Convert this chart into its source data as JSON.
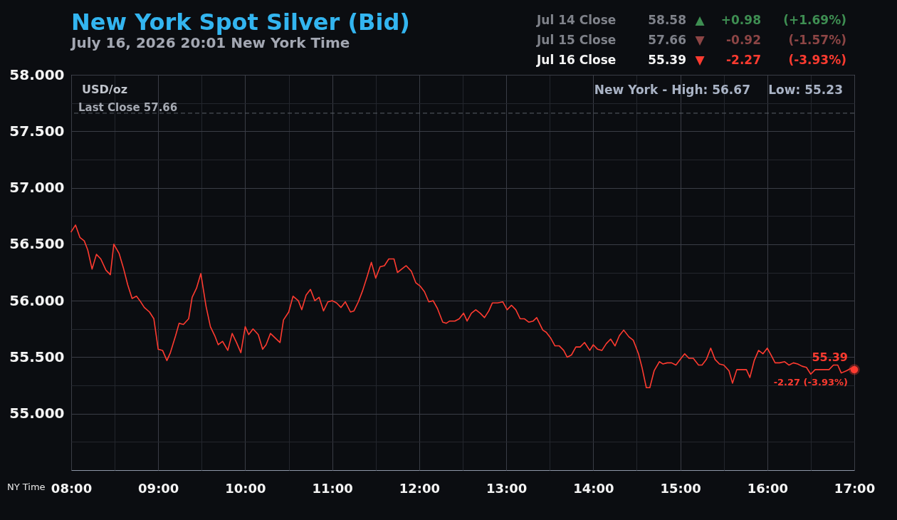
{
  "chart_data": {
    "type": "line",
    "title": "New York Spot Silver (Bid)",
    "subtitle": "July 16, 2026 20:01 New York Time",
    "xlabel": "NY Time",
    "ylabel": "USD/oz",
    "series": [
      {
        "color": "#ff3b30",
        "x": [
          8.0,
          8.05,
          8.1,
          8.15,
          8.19,
          8.24,
          8.29,
          8.34,
          8.4,
          8.45,
          8.49,
          8.55,
          8.6,
          8.65,
          8.7,
          8.75,
          8.79,
          8.84,
          8.9,
          8.95,
          9.0,
          9.05,
          9.1,
          9.14,
          9.2,
          9.24,
          9.29,
          9.35,
          9.39,
          9.44,
          9.49,
          9.55,
          9.6,
          9.65,
          9.69,
          9.74,
          9.8,
          9.85,
          9.9,
          9.95,
          10.0,
          10.04,
          10.09,
          10.15,
          10.2,
          10.24,
          10.29,
          10.4,
          10.44,
          10.5,
          10.55,
          10.61,
          10.65,
          10.7,
          10.75,
          10.8,
          10.85,
          10.9,
          10.95,
          11.0,
          11.05,
          11.1,
          11.15,
          11.21,
          11.25,
          11.3,
          11.35,
          11.4,
          11.45,
          11.5,
          11.55,
          11.6,
          11.65,
          11.71,
          11.75,
          11.8,
          11.85,
          11.91,
          11.96,
          12.01,
          12.06,
          12.11,
          12.16,
          12.21,
          12.27,
          12.31,
          12.35,
          12.41,
          12.46,
          12.51,
          12.55,
          12.6,
          12.65,
          12.7,
          12.75,
          12.8,
          12.84,
          12.9,
          12.96,
          13.01,
          13.06,
          13.11,
          13.16,
          13.21,
          13.26,
          13.31,
          13.35,
          13.42,
          13.46,
          13.51,
          13.56,
          13.61,
          13.66,
          13.7,
          13.75,
          13.8,
          13.85,
          13.9,
          13.96,
          14.0,
          14.05,
          14.1,
          14.15,
          14.2,
          14.25,
          14.3,
          14.35,
          14.41,
          14.46,
          14.52,
          14.56,
          14.61,
          14.65,
          14.7,
          14.76,
          14.8,
          14.85,
          14.9,
          14.95,
          15.0,
          15.05,
          15.1,
          15.15,
          15.21,
          15.25,
          15.3,
          15.35,
          15.4,
          15.45,
          15.5,
          15.56,
          15.6,
          15.65,
          15.71,
          15.76,
          15.8,
          15.85,
          15.9,
          15.95,
          16.0,
          16.05,
          16.09,
          16.14,
          16.2,
          16.25,
          16.3,
          16.35,
          16.4,
          16.45,
          16.5,
          16.55,
          16.61,
          16.66,
          16.71,
          16.76,
          16.81,
          16.85,
          16.91,
          16.96,
          17.0
        ],
        "values": [
          56.61,
          56.67,
          56.56,
          56.53,
          56.45,
          56.28,
          56.41,
          56.37,
          56.27,
          56.23,
          56.5,
          56.42,
          56.29,
          56.14,
          56.02,
          56.04,
          56.0,
          55.94,
          55.9,
          55.84,
          55.57,
          55.56,
          55.47,
          55.54,
          55.69,
          55.8,
          55.79,
          55.84,
          56.03,
          56.11,
          56.24,
          55.95,
          55.77,
          55.69,
          55.61,
          55.64,
          55.56,
          55.71,
          55.63,
          55.54,
          55.77,
          55.7,
          55.75,
          55.7,
          55.57,
          55.61,
          55.71,
          55.63,
          55.83,
          55.9,
          56.04,
          56.0,
          55.92,
          56.05,
          56.1,
          56.0,
          56.03,
          55.91,
          55.99,
          56.0,
          55.98,
          55.94,
          55.99,
          55.9,
          55.91,
          55.99,
          56.09,
          56.21,
          56.34,
          56.2,
          56.3,
          56.31,
          56.37,
          56.37,
          56.25,
          56.28,
          56.31,
          56.26,
          56.16,
          56.13,
          56.08,
          55.99,
          56.0,
          55.93,
          55.81,
          55.8,
          55.82,
          55.82,
          55.84,
          55.89,
          55.82,
          55.89,
          55.92,
          55.89,
          55.85,
          55.91,
          55.98,
          55.98,
          55.99,
          55.92,
          55.96,
          55.92,
          55.84,
          55.84,
          55.81,
          55.82,
          55.85,
          55.74,
          55.72,
          55.67,
          55.6,
          55.6,
          55.56,
          55.5,
          55.52,
          55.59,
          55.59,
          55.63,
          55.56,
          55.61,
          55.57,
          55.56,
          55.62,
          55.66,
          55.6,
          55.69,
          55.74,
          55.68,
          55.65,
          55.53,
          55.41,
          55.23,
          55.23,
          55.38,
          55.46,
          55.44,
          55.45,
          55.45,
          55.43,
          55.48,
          55.53,
          55.49,
          55.49,
          55.43,
          55.43,
          55.48,
          55.58,
          55.48,
          55.44,
          55.43,
          55.38,
          55.27,
          55.39,
          55.39,
          55.39,
          55.32,
          55.47,
          55.56,
          55.53,
          55.58,
          55.51,
          55.45,
          55.45,
          55.46,
          55.43,
          55.45,
          55.44,
          55.42,
          55.41,
          55.35,
          55.39,
          55.39,
          55.39,
          55.39,
          55.43,
          55.43,
          55.36,
          55.38,
          55.4,
          55.39
        ]
      },
      {
        "type": "scatter",
        "color": "#ff3b30",
        "marker": "circle",
        "x": [
          17.0
        ],
        "values": [
          55.39
        ]
      }
    ],
    "xlim": [
      8,
      17
    ],
    "ylim": [
      54.5,
      58.0
    ],
    "xticks": [
      {
        "value": 8,
        "label": "08:00"
      },
      {
        "value": 8.5,
        "label": null
      },
      {
        "value": 9,
        "label": "09:00"
      },
      {
        "value": 9.5,
        "label": null
      },
      {
        "value": 10,
        "label": "10:00"
      },
      {
        "value": 10.5,
        "label": null
      },
      {
        "value": 11,
        "label": "11:00"
      },
      {
        "value": 11.5,
        "label": null
      },
      {
        "value": 12,
        "label": "12:00"
      },
      {
        "value": 12.5,
        "label": null
      },
      {
        "value": 13,
        "label": "13:00"
      },
      {
        "value": 13.5,
        "label": null
      },
      {
        "value": 14,
        "label": "14:00"
      },
      {
        "value": 14.5,
        "label": null
      },
      {
        "value": 15,
        "label": "15:00"
      },
      {
        "value": 15.5,
        "label": null
      },
      {
        "value": 16,
        "label": "16:00"
      },
      {
        "value": 16.5,
        "label": null
      },
      {
        "value": 17,
        "label": "17:00"
      }
    ],
    "yticks": [
      {
        "value": 54.75,
        "label": null
      },
      {
        "value": 55.0,
        "label": "55.000"
      },
      {
        "value": 55.25,
        "label": null
      },
      {
        "value": 55.5,
        "label": "55.500"
      },
      {
        "value": 55.75,
        "label": null
      },
      {
        "value": 56.0,
        "label": "56.000"
      },
      {
        "value": 56.25,
        "label": null
      },
      {
        "value": 56.5,
        "label": "56.500"
      },
      {
        "value": 56.75,
        "label": null
      },
      {
        "value": 57.0,
        "label": "57.000"
      },
      {
        "value": 57.25,
        "label": null
      },
      {
        "value": 57.5,
        "label": "57.500"
      },
      {
        "value": 57.75,
        "label": null
      },
      {
        "value": 58.0,
        "label": "58.000"
      }
    ],
    "ref_lines": [
      {
        "axis": "y",
        "value": 57.66,
        "label": "Last Close 57.66",
        "color": "#5c606a",
        "line_style": "dashed"
      }
    ],
    "annotations": [
      "Jul 14 Close",
      "58.58",
      "▲",
      "+0.98",
      "(+1.69%)",
      "Jul 15 Close",
      "57.66",
      "▼",
      "-0.92",
      "(-1.57%)",
      "Jul 16 Close",
      "55.39",
      "▼",
      "-2.27",
      "(-3.93%)",
      "New York - High: 56.67",
      "Low: 55.23",
      {
        "text": "55.39",
        "x": 17.0,
        "y": 55.39
      },
      {
        "text": "-2.27 (-3.93%)",
        "x": 17.0,
        "y": 55.39
      }
    ],
    "grid": true
  }
}
